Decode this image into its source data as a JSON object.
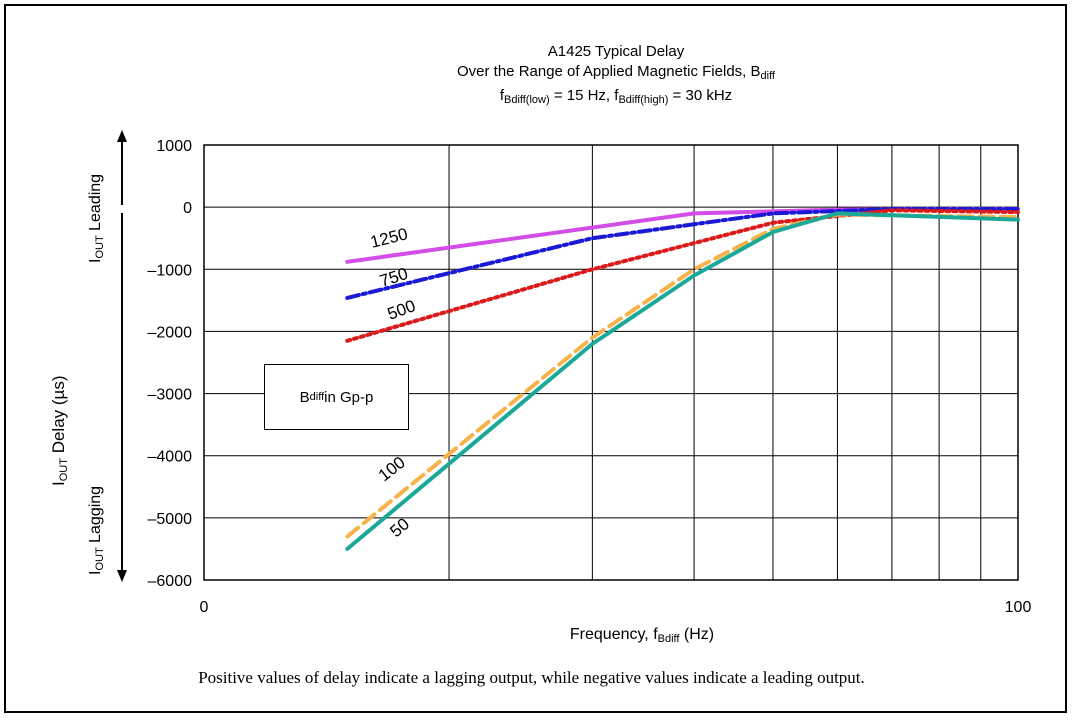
{
  "chart_data": {
    "type": "line",
    "title": {
      "line1": "A1425 Typical Delay",
      "line2_main": "Over the Range of Applied Magnetic Fields, B",
      "line2_sub": "diff",
      "line3_a": "f",
      "line3_a_sub": "Bdiff(low)",
      "line3_b": " = 15 Hz, f",
      "line3_b_sub": "Bdiff(high)",
      "line3_c": " = 30 kHz"
    },
    "xlabel": {
      "main": "Frequency, f",
      "sub": "Bdiff",
      "unit": " (Hz)"
    },
    "ylabel": {
      "main": "I",
      "sub": "OUT",
      "rest": " Delay (µs)"
    },
    "leading_label": {
      "main": "I",
      "sub": "OUT",
      "rest": " Leading"
    },
    "lagging_label": {
      "main": "I",
      "sub": "OUT",
      "rest": " Lagging"
    },
    "x_tick_labels": [
      "0",
      "100"
    ],
    "y_ticks": [
      1000,
      0,
      -1000,
      -2000,
      -3000,
      -4000,
      -5000,
      -6000
    ],
    "y_tick_labels": [
      "1000",
      "0",
      "–1000",
      "–2000",
      "–3000",
      "–4000",
      "–5000",
      "–6000"
    ],
    "ylim": [
      -6000,
      1000
    ],
    "x_scale": "log",
    "grid": true,
    "legend_box": {
      "main": "B",
      "sub": "diff",
      "rest": " in Gp-p"
    },
    "series": [
      {
        "name": "1250",
        "color": "#d24ee6",
        "style": "solid",
        "x": [
          15,
          40,
          60,
          80,
          100
        ],
        "values": [
          -880,
          -100,
          -40,
          -30,
          -30
        ]
      },
      {
        "name": "750",
        "color": "#1a1ad6",
        "style": "dashdot",
        "x": [
          15,
          30,
          50,
          70,
          100
        ],
        "values": [
          -1460,
          -500,
          -100,
          -30,
          -30
        ]
      },
      {
        "name": "500",
        "color": "#dd1a1a",
        "style": "dotted",
        "x": [
          15,
          30,
          50,
          70,
          100
        ],
        "values": [
          -2150,
          -1000,
          -250,
          -50,
          -80
        ]
      },
      {
        "name": "100",
        "color": "#f7b24a",
        "style": "dashed",
        "x": [
          15,
          30,
          40,
          50,
          60,
          100
        ],
        "values": [
          -5300,
          -2100,
          -1000,
          -350,
          -120,
          -160
        ]
      },
      {
        "name": "50",
        "color": "#1aa899",
        "style": "solid",
        "x": [
          15,
          30,
          40,
          50,
          60,
          100
        ],
        "values": [
          -5500,
          -2200,
          -1100,
          -400,
          -100,
          -200
        ]
      }
    ]
  },
  "caption": "Positive values of delay indicate a lagging output, while negative values indicate a leading output."
}
